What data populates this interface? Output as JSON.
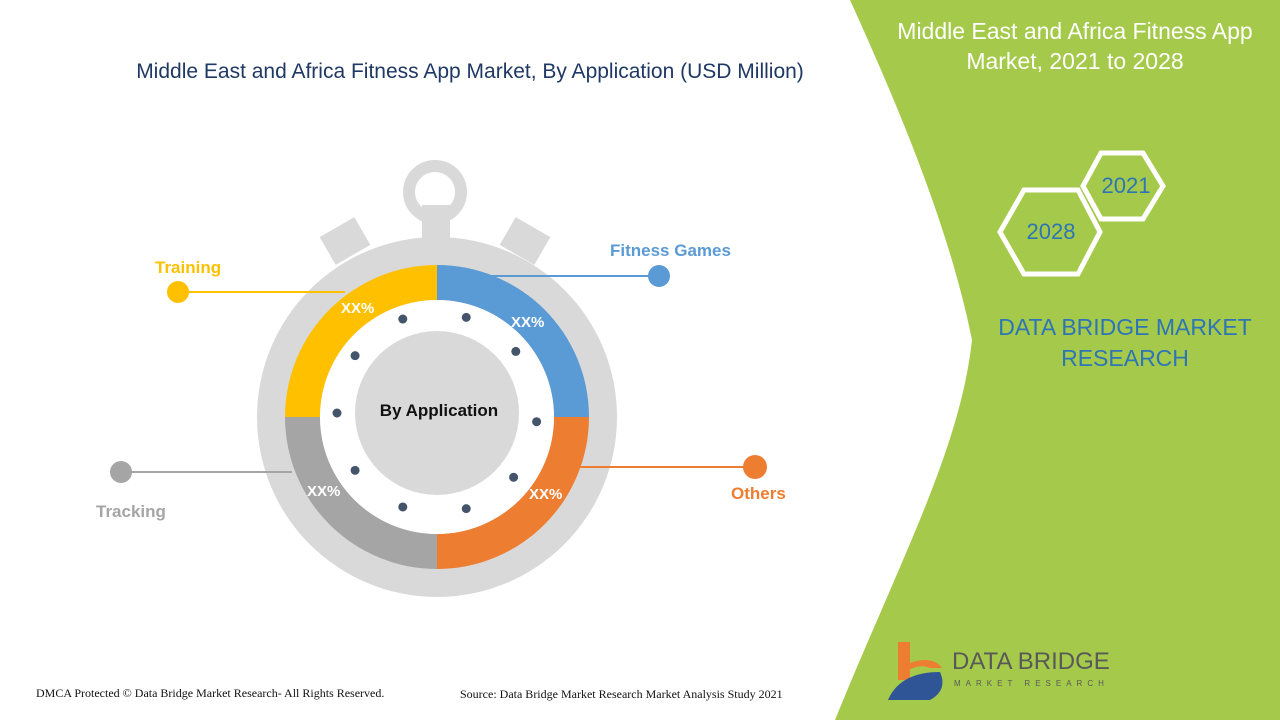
{
  "title": "Middle East and Africa Fitness App Market, By Application (USD Million)",
  "side_panel": {
    "title": "Middle East and Africa Fitness App Market, 2021 to 2028",
    "year_start": "2021",
    "year_end": "2028",
    "brand": "DATA BRIDGE MARKET RESEARCH"
  },
  "colors": {
    "panel": "#a5c94a",
    "training": "#ffc000",
    "fitness_games": "#5b9bd5",
    "others": "#ed7d31",
    "tracking": "#a5a5a5",
    "stopwatch": "#d9d9d9"
  },
  "chart_data": {
    "type": "pie",
    "title": "Middle East and Africa Fitness App Market, By Application (USD Million)",
    "center_label": "By Application",
    "categories": [
      "Fitness Games",
      "Others",
      "Tracking",
      "Training"
    ],
    "labels": [
      "XX%",
      "XX%",
      "XX%",
      "XX%"
    ],
    "colors": [
      "#5b9bd5",
      "#ed7d31",
      "#a5a5a5",
      "#ffc000"
    ]
  },
  "footer": {
    "copyright": "DMCA Protected © Data Bridge Market Research- All Rights Reserved.",
    "source": "Source: Data Bridge Market Research Market Analysis Study 2021"
  },
  "logo": {
    "name": "DATA BRIDGE",
    "tagline": "MARKET RESEARCH"
  }
}
